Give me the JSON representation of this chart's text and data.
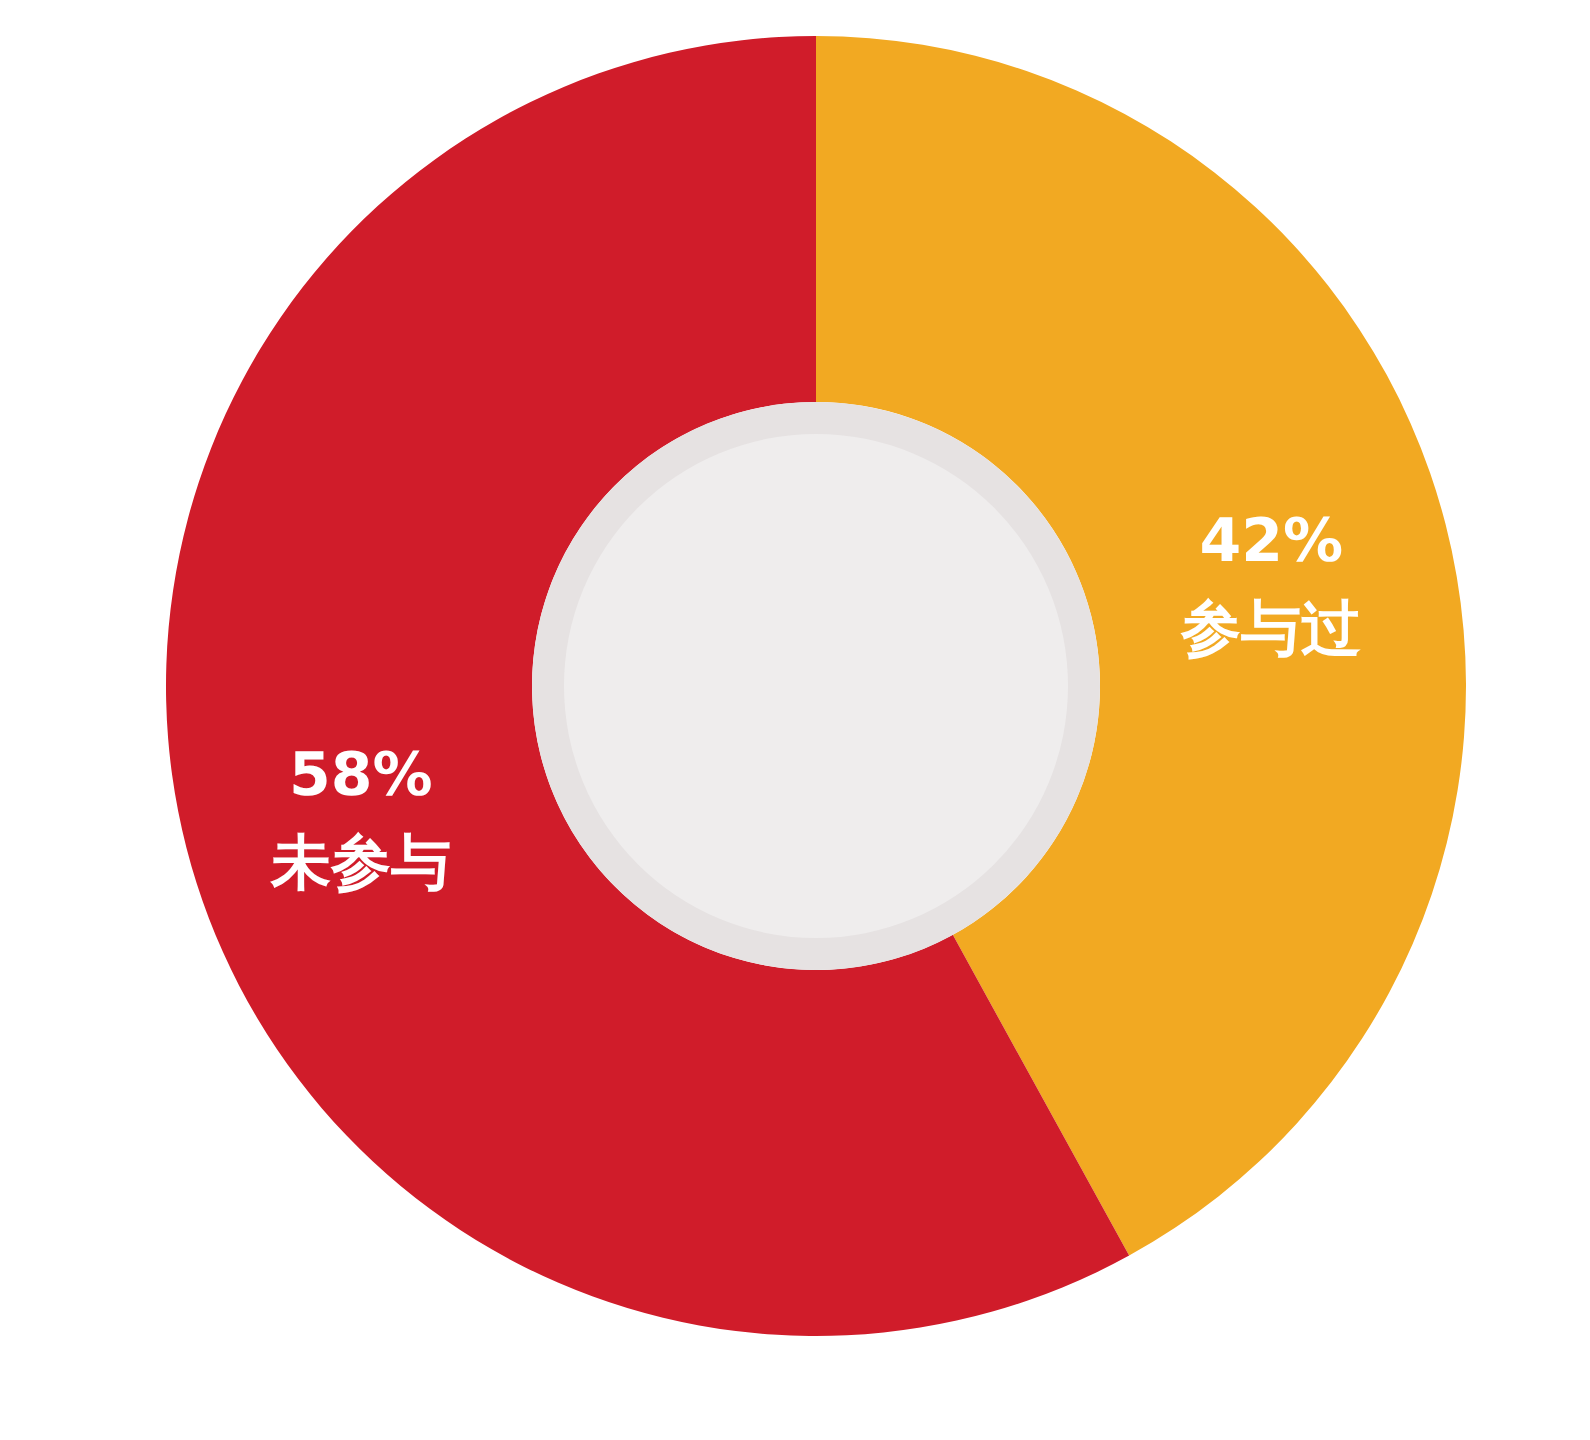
{
  "chart_data": {
    "type": "donut",
    "categories": [
      "参与过",
      "未参与"
    ],
    "values": [
      42,
      58
    ],
    "colors": [
      "#f2a922",
      "#d01c2a"
    ],
    "value_labels": [
      "42%",
      "58%"
    ]
  }
}
